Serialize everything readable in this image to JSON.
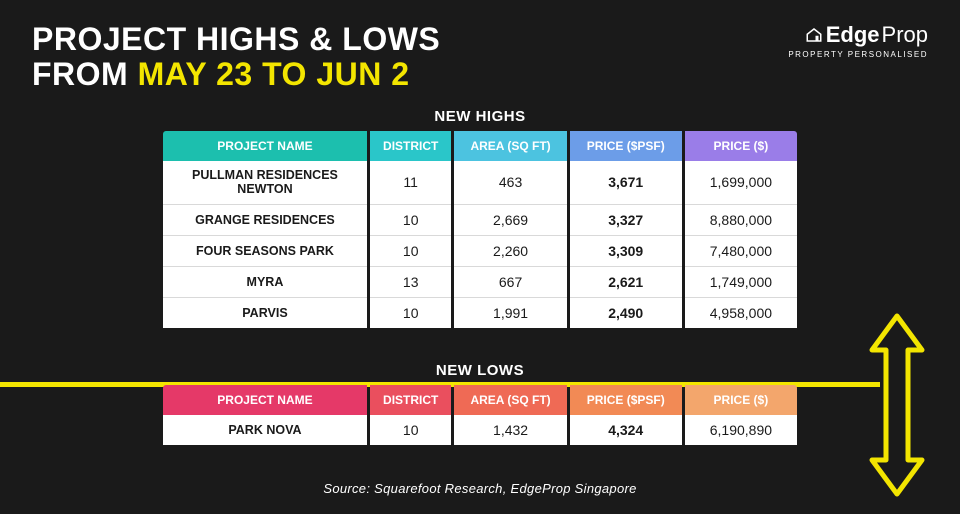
{
  "title": {
    "line1_a": "PROJECT HIGHS & LOWS",
    "line2_a": "FROM ",
    "line2_b": "MAY 23 TO JUN 2"
  },
  "logo": {
    "brand_a": "Edge",
    "brand_b": "Prop",
    "tagline": "PROPERTY PERSONALISED"
  },
  "labels": {
    "new_highs": "NEW HIGHS",
    "new_lows": "NEW LOWS",
    "col_name": "PROJECT NAME",
    "col_district": "DISTRICT",
    "col_area": "AREA (SQ FT)",
    "col_psf": "PRICE ($PSF)",
    "col_price": "PRICE ($)"
  },
  "highs": [
    {
      "name": "PULLMAN RESIDENCES NEWTON",
      "district": "11",
      "area": "463",
      "psf": "3,671",
      "price": "1,699,000"
    },
    {
      "name": "GRANGE RESIDENCES",
      "district": "10",
      "area": "2,669",
      "psf": "3,327",
      "price": "8,880,000"
    },
    {
      "name": "FOUR SEASONS PARK",
      "district": "10",
      "area": "2,260",
      "psf": "3,309",
      "price": "7,480,000"
    },
    {
      "name": "MYRA",
      "district": "13",
      "area": "667",
      "psf": "2,621",
      "price": "1,749,000"
    },
    {
      "name": "PARVIS",
      "district": "10",
      "area": "1,991",
      "psf": "2,490",
      "price": "4,958,000"
    }
  ],
  "lows": [
    {
      "name": "PARK NOVA",
      "district": "10",
      "area": "1,432",
      "psf": "4,324",
      "price": "6,190,890"
    }
  ],
  "source": "Source: Squarefoot Research, EdgeProp Singapore",
  "colors": {
    "bg": "#1a1a1a",
    "accent_yellow": "#f3e500",
    "hi_headers": [
      "#1cbfae",
      "#2ac6c9",
      "#4cc3e0",
      "#6c9de8",
      "#9a7de8"
    ],
    "lo_headers": [
      "#e53968",
      "#ea4f5e",
      "#ef6a55",
      "#f28a55",
      "#f3a66c"
    ]
  }
}
